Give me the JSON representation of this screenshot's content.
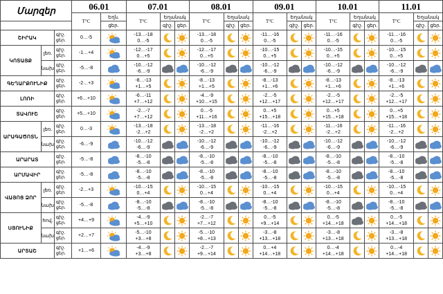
{
  "header": {
    "region_title": "Մարզեր",
    "temp_label": "T°C",
    "weather_label": "Եղանակ",
    "weather_label_short": "Եղն.",
    "day_label": "ցերէ.",
    "night_label": "գիշ.",
    "day_short": "ցեր.",
    "dates": [
      "06.01",
      "07.01",
      "08.01",
      "09.01",
      "10.01",
      "11.01"
    ]
  },
  "regions": [
    {
      "name": "ՇԻՐԱԿ",
      "zones": [
        {
          "zone": "",
          "rows": [
            {
              "t": [
                "0…-5",
                "-13…-18\n0…-5",
                "-13…-18\n0…-5",
                "-11…-16\n0…-5",
                "-11…-16\n0…-5",
                "-11…-16\n0…-5"
              ],
              "i": [
                [
                  "partly"
                ],
                [
                  "moon",
                  "sun"
                ],
                [
                  "moon",
                  "sun"
                ],
                [
                  "moon",
                  "sun"
                ],
                [
                  "moon",
                  "sun"
                ],
                [
                  "moon",
                  "sun"
                ]
              ]
            }
          ]
        }
      ]
    },
    {
      "name": "ԿՈՏԱՅՔ",
      "zones": [
        {
          "zone": "լեռ.",
          "rows": [
            {
              "t": [
                "-1…+4",
                "-12…-17\n0…+5",
                "-12…-17\n0…+5",
                "-10…-15\n0…+5",
                "-10…-15\n0…+5",
                "-10…-15\n0…+5"
              ],
              "i": [
                [
                  "partly"
                ],
                [
                  "moon",
                  "sun"
                ],
                [
                  "moon",
                  "sun"
                ],
                [
                  "moon",
                  "sun"
                ],
                [
                  "moon",
                  "sun"
                ],
                [
                  "moon",
                  "sun"
                ]
              ]
            }
          ]
        },
        {
          "zone": "նախ.",
          "rows": [
            {
              "t": [
                "-5…-8",
                "-10…-12\n-6…-9",
                "-10…-12\n-6…-9",
                "-10…-12\n-6…-9",
                "-10…-12\n-6…-9",
                "-10…-12\n-6…-9"
              ],
              "i": [
                [
                  "cloudy"
                ],
                [
                  "cloudy",
                  "cloudy"
                ],
                [
                  "cloudy",
                  "cloudy"
                ],
                [
                  "cloudy",
                  "cloudy"
                ],
                [
                  "cloudy",
                  "cloudy"
                ],
                [
                  "cloudy",
                  "cloudy"
                ]
              ]
            }
          ]
        }
      ]
    },
    {
      "name": "ԳԵՂԱՐՔՈՒՆԻՔ",
      "zones": [
        {
          "zone": "",
          "rows": [
            {
              "t": [
                "-2…+3",
                "-8…-13\n+1…+5",
                "-8…-13\n+1…+5",
                "-8…-13\n+1…+6",
                "-8…-13\n+1…+6",
                "-8…-13\n+1…+6"
              ],
              "i": [
                [
                  "partly"
                ],
                [
                  "moon",
                  "sun"
                ],
                [
                  "moon",
                  "sun"
                ],
                [
                  "moon",
                  "sun"
                ],
                [
                  "moon",
                  "sun"
                ],
                [
                  "moon",
                  "sun"
                ]
              ]
            }
          ]
        }
      ]
    },
    {
      "name": "ԼՈՌԻ",
      "zones": [
        {
          "zone": "",
          "rows": [
            {
              "t": [
                "+6…+10",
                "-6…-11\n+7…+12",
                "-4…-9\n+10…+15",
                "-2…-5\n+12…+17",
                "-2…-5\n+12…+17",
                "-2…-5\n+12…+17"
              ],
              "i": [
                [
                  "partly"
                ],
                [
                  "moon",
                  "sun"
                ],
                [
                  "moon",
                  "sun"
                ],
                [
                  "moon",
                  "sun"
                ],
                [
                  "moon",
                  "sun"
                ],
                [
                  "moon",
                  "sun"
                ]
              ]
            }
          ]
        }
      ]
    },
    {
      "name": "ՏԱՎՈՒՇ",
      "zones": [
        {
          "zone": "",
          "rows": [
            {
              "t": [
                "+5…+10",
                "-2…-7\n+7…+12",
                "0…-5\n+11…+16",
                "0…+5\n+15…+18",
                "0…+5\n+15…+18",
                "0…+5\n+15…+18"
              ],
              "i": [
                [
                  "partly"
                ],
                [
                  "moon",
                  "sun"
                ],
                [
                  "moon",
                  "sun"
                ],
                [
                  "moon",
                  "sun"
                ],
                [
                  "moon",
                  "sun"
                ],
                [
                  "moon",
                  "sun"
                ]
              ]
            }
          ]
        }
      ]
    },
    {
      "name": "ԱՐԱԳԱԾՈՏՆ",
      "zones": [
        {
          "zone": "լեռ.",
          "rows": [
            {
              "t": [
                "0…-3",
                "-13…-18\n-2…+2",
                "-13…-18\n-2…+2",
                "-11…-16\n-2…+2",
                "-11…-16\n-2…+2",
                "-11…-16\n-2…+2"
              ],
              "i": [
                [
                  "partly"
                ],
                [
                  "moon",
                  "sun"
                ],
                [
                  "moon",
                  "sun"
                ],
                [
                  "moon",
                  "sun"
                ],
                [
                  "moon",
                  "sun"
                ],
                [
                  "moon",
                  "sun"
                ]
              ]
            }
          ]
        },
        {
          "zone": "նախ.",
          "rows": [
            {
              "t": [
                "-6…-9",
                "-10…-12\n-6…-9",
                "-10…-12\n-6…-9",
                "-10…-12\n-6…-9",
                "-10…-12\n-6…-9",
                "-10…-12\n-6…-9"
              ],
              "i": [
                [
                  "cloudy"
                ],
                [
                  "cloudy",
                  "cloudy"
                ],
                [
                  "cloudy",
                  "cloudy"
                ],
                [
                  "cloudy",
                  "cloudy"
                ],
                [
                  "cloudy",
                  "cloudy"
                ],
                [
                  "cloudy",
                  "cloudy"
                ]
              ]
            }
          ]
        }
      ]
    },
    {
      "name": "ԱՐԱՐԱՏ",
      "zones": [
        {
          "zone": "",
          "rows": [
            {
              "t": [
                "-5…-8",
                "-8…-10\n-5…-8",
                "-8…-10\n-5…-8",
                "-8…-10\n-5…-8",
                "-8…-10\n-5…-8",
                "-8…-10\n-5…-8"
              ],
              "i": [
                [
                  "cloudy"
                ],
                [
                  "cloudy",
                  "cloudy"
                ],
                [
                  "cloudy",
                  "cloudy"
                ],
                [
                  "cloudy",
                  "cloudy"
                ],
                [
                  "cloudy",
                  "cloudy"
                ],
                [
                  "cloudy",
                  "cloudy"
                ]
              ]
            }
          ]
        }
      ]
    },
    {
      "name": "ԱՐՄԱՎԻՐ",
      "zones": [
        {
          "zone": "",
          "rows": [
            {
              "t": [
                "-5…-8",
                "-8…-10\n-5…-8",
                "-8…-10\n-5…-8",
                "-8…-10\n-5…-8",
                "-8…-10\n-5…-8",
                "-8…-10\n-5…-8"
              ],
              "i": [
                [
                  "cloudy"
                ],
                [
                  "cloudy",
                  "cloudy"
                ],
                [
                  "cloudy",
                  "cloudy"
                ],
                [
                  "cloudy",
                  "cloudy"
                ],
                [
                  "cloudy",
                  "cloudy"
                ],
                [
                  "cloudy",
                  "cloudy"
                ]
              ]
            }
          ]
        }
      ]
    },
    {
      "name": "ՎԱՅՈՑ ՁՈՐ",
      "zones": [
        {
          "zone": "լեռ.",
          "rows": [
            {
              "t": [
                "-2…+3",
                "-10…-15\n0…+4",
                "-10…-15\n0…+4",
                "-10…-15\n0…+4",
                "-10…-15\n0…+4",
                "-10…-15\n0…+4"
              ],
              "i": [
                [
                  "partly"
                ],
                [
                  "moon",
                  "sun"
                ],
                [
                  "moon",
                  "sun"
                ],
                [
                  "moon",
                  "sun"
                ],
                [
                  "moon",
                  "sun"
                ],
                [
                  "moon",
                  "sun"
                ]
              ]
            }
          ]
        },
        {
          "zone": "նախ.",
          "rows": [
            {
              "t": [
                "-5…-8",
                "-8…-10\n-5…-8",
                "-8…-10\n-5…-8",
                "-8…-10\n-5…-8",
                "-8…-10\n-5…-8",
                "-8…-10\n-5…-8"
              ],
              "i": [
                [
                  "cloudy"
                ],
                [
                  "cloudy",
                  "cloudy"
                ],
                [
                  "cloudy",
                  "cloudy"
                ],
                [
                  "cloudy",
                  "cloudy"
                ],
                [
                  "cloudy",
                  "cloudy"
                ],
                [
                  "cloudy",
                  "cloudy"
                ]
              ]
            }
          ]
        }
      ]
    },
    {
      "name": "ՍՅՈՒՆԻՔ",
      "zones": [
        {
          "zone": "հով.",
          "rows": [
            {
              "t": [
                "+4…+9",
                "-4…-9\n+5…+10",
                "-2…-7\n+7…+12",
                "0…-5\n+9…+14",
                "0…-5\n+14…+18",
                "0…-5\n+14…+18"
              ],
              "i": [
                [
                  "partly"
                ],
                [
                  "moon",
                  "sun"
                ],
                [
                  "moon",
                  "sun"
                ],
                [
                  "moon",
                  "sun"
                ],
                [
                  "cloudy",
                  "sun"
                ],
                [
                  "moon",
                  "sun"
                ]
              ]
            }
          ]
        },
        {
          "zone": "նախ.",
          "rows": [
            {
              "t": [
                "+2…+7",
                "-5…-10\n+3…+8",
                "-5…-10\n+8…+13",
                "-3…-8\n+13…+18",
                "-3…-8\n+13…+18",
                "-3…-8\n+13…+18"
              ],
              "i": [
                [
                  "partly"
                ],
                [
                  "moon",
                  "sun"
                ],
                [
                  "moon",
                  "sun"
                ],
                [
                  "moon",
                  "sun"
                ],
                [
                  "moon",
                  "sun"
                ],
                [
                  "moon",
                  "sun"
                ]
              ]
            }
          ]
        }
      ]
    },
    {
      "name": "ԱՐՏԱՇ",
      "zones": [
        {
          "zone": "",
          "rows": [
            {
              "t": [
                "+1…+6",
                "-4…-9\n+3…+8",
                "-2…-7\n+9…+14",
                "0…+4\n+14…+18",
                "0…-4\n+14…+18",
                "0…-4\n+14…+18"
              ],
              "i": [
                [
                  "partly"
                ],
                [
                  "moon",
                  "sun"
                ],
                [
                  "moon",
                  "sun"
                ],
                [
                  "moon",
                  "sun"
                ],
                [
                  "moon",
                  "sun"
                ],
                [
                  "moon",
                  "sun"
                ]
              ]
            }
          ]
        }
      ]
    }
  ],
  "colors": {
    "sun": "#f2a81d",
    "moon": "#f2b52a",
    "cloud": "#5a8fd0",
    "cloud_dark": "#6b6f76",
    "border": "#4a4a4a"
  },
  "icons": {
    "sun": "sun-icon",
    "moon": "crescent-moon-icon",
    "partly": "sun-behind-cloud-icon",
    "cloudy": "cloud-icon"
  }
}
